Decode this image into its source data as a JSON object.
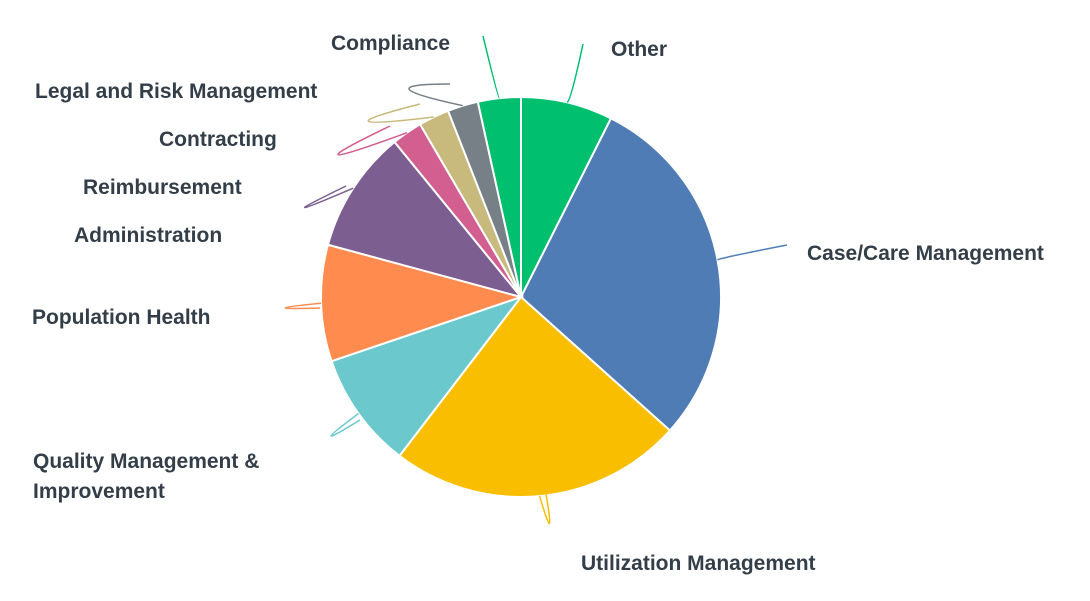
{
  "chart_data": {
    "type": "pie",
    "title": "",
    "categories": [
      "Other",
      "Case/Care Management",
      "Utilization Management",
      "Quality Management & Improvement",
      "Population Health",
      "Administration",
      "Reimbursement",
      "Contracting",
      "Legal and Risk Management",
      "Compliance"
    ],
    "values": [
      7.5,
      29.5,
      24.0,
      9.5,
      9.5,
      10.0,
      2.5,
      2.5,
      2.5,
      3.5
    ],
    "colors": [
      "#00bf6f",
      "#507cb6",
      "#f9be00",
      "#6bc8cd",
      "#ff8b4f",
      "#7d5e90",
      "#d25f90",
      "#c8b97c",
      "#768086",
      "#00bf6f"
    ],
    "legend": "none"
  }
}
